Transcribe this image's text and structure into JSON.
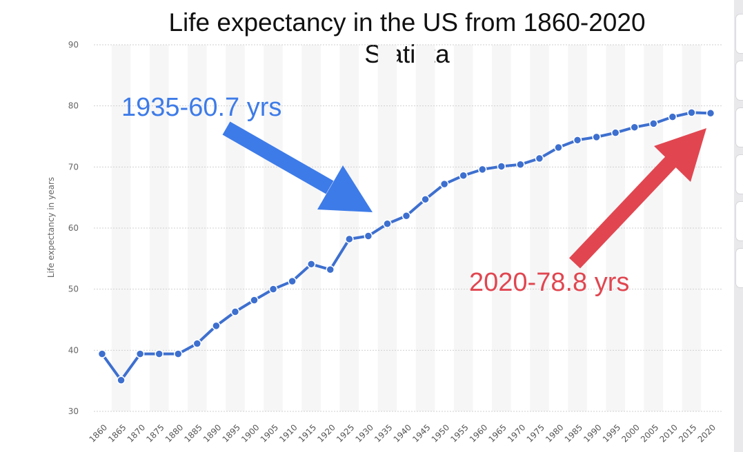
{
  "chart_data": {
    "type": "line",
    "title": "Life expectancy in the US from 1860-2020",
    "subtitle": "Statista",
    "ylabel": "Life expectancy in years",
    "xlabel": "",
    "ylim": [
      30,
      90
    ],
    "yticks": [
      30,
      40,
      50,
      60,
      70,
      80,
      90
    ],
    "grid": true,
    "x": [
      1860,
      1865,
      1870,
      1875,
      1880,
      1885,
      1890,
      1895,
      1900,
      1905,
      1910,
      1915,
      1920,
      1925,
      1930,
      1935,
      1940,
      1945,
      1950,
      1955,
      1960,
      1965,
      1970,
      1975,
      1980,
      1985,
      1990,
      1995,
      2000,
      2005,
      2010,
      2015,
      2020
    ],
    "values": [
      39.4,
      35.1,
      39.4,
      39.4,
      39.4,
      41.1,
      44.0,
      46.3,
      48.2,
      50.0,
      51.3,
      54.1,
      53.2,
      58.2,
      58.7,
      60.7,
      62.0,
      64.7,
      67.2,
      68.6,
      69.6,
      70.1,
      70.4,
      71.4,
      73.2,
      74.4,
      74.9,
      75.6,
      76.5,
      77.1,
      78.2,
      78.9,
      78.8
    ],
    "color": "#3d6fcf",
    "annotations": [
      {
        "text": "1935-60.7 yrs",
        "color": "#3d7be8"
      },
      {
        "text": "2020-78.8 yrs",
        "color": "#e14650"
      }
    ]
  }
}
